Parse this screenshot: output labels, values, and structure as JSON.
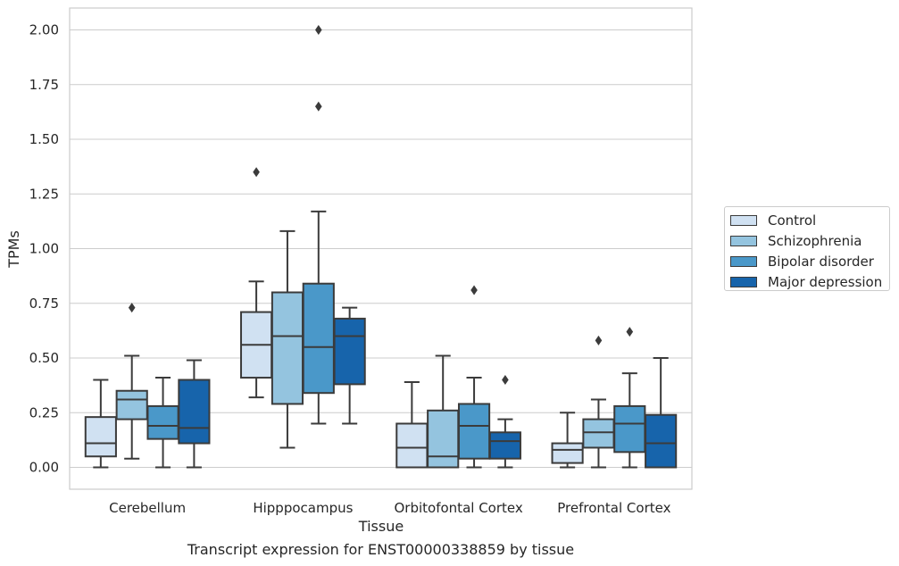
{
  "chart_data": {
    "type": "box",
    "title": "Transcript expression for ENST00000338859 by tissue",
    "xlabel": "Tissue",
    "ylabel": "TPMs",
    "ylim": [
      -0.1,
      2.1
    ],
    "yticks": [
      "0.00",
      "0.25",
      "0.50",
      "0.75",
      "1.00",
      "1.25",
      "1.50",
      "1.75",
      "2.00"
    ],
    "grid": true,
    "legend_position": "right",
    "categories": [
      "Cerebellum",
      "Hipppocampus",
      "Orbitofontal Cortex",
      "Prefrontal Cortex"
    ],
    "series": [
      {
        "name": "Control",
        "color": "#d0e1f2",
        "boxes": [
          {
            "whisker_low": 0.0,
            "q1": 0.05,
            "median": 0.11,
            "q3": 0.23,
            "whisker_high": 0.4,
            "outliers": []
          },
          {
            "whisker_low": 0.32,
            "q1": 0.41,
            "median": 0.56,
            "q3": 0.71,
            "whisker_high": 0.85,
            "outliers": [
              1.35
            ]
          },
          {
            "whisker_low": 0.0,
            "q1": 0.0,
            "median": 0.09,
            "q3": 0.2,
            "whisker_high": 0.39,
            "outliers": []
          },
          {
            "whisker_low": 0.0,
            "q1": 0.02,
            "median": 0.08,
            "q3": 0.11,
            "whisker_high": 0.25,
            "outliers": []
          }
        ]
      },
      {
        "name": "Schizophrenia",
        "color": "#94c4df",
        "boxes": [
          {
            "whisker_low": 0.04,
            "q1": 0.22,
            "median": 0.31,
            "q3": 0.35,
            "whisker_high": 0.51,
            "outliers": [
              0.73
            ]
          },
          {
            "whisker_low": 0.09,
            "q1": 0.29,
            "median": 0.6,
            "q3": 0.8,
            "whisker_high": 1.08,
            "outliers": []
          },
          {
            "whisker_low": 0.0,
            "q1": 0.0,
            "median": 0.05,
            "q3": 0.26,
            "whisker_high": 0.51,
            "outliers": []
          },
          {
            "whisker_low": 0.0,
            "q1": 0.09,
            "median": 0.16,
            "q3": 0.22,
            "whisker_high": 0.31,
            "outliers": [
              0.58
            ]
          }
        ]
      },
      {
        "name": "Bipolar disorder",
        "color": "#4a98c9",
        "boxes": [
          {
            "whisker_low": 0.0,
            "q1": 0.13,
            "median": 0.19,
            "q3": 0.28,
            "whisker_high": 0.41,
            "outliers": []
          },
          {
            "whisker_low": 0.2,
            "q1": 0.34,
            "median": 0.55,
            "q3": 0.84,
            "whisker_high": 1.17,
            "outliers": [
              1.65,
              2.0
            ]
          },
          {
            "whisker_low": 0.0,
            "q1": 0.04,
            "median": 0.19,
            "q3": 0.29,
            "whisker_high": 0.41,
            "outliers": [
              0.81
            ]
          },
          {
            "whisker_low": 0.0,
            "q1": 0.07,
            "median": 0.2,
            "q3": 0.28,
            "whisker_high": 0.43,
            "outliers": [
              0.62
            ]
          }
        ]
      },
      {
        "name": "Major depression",
        "color": "#1764ab",
        "boxes": [
          {
            "whisker_low": 0.0,
            "q1": 0.11,
            "median": 0.18,
            "q3": 0.4,
            "whisker_high": 0.49,
            "outliers": []
          },
          {
            "whisker_low": 0.2,
            "q1": 0.38,
            "median": 0.6,
            "q3": 0.68,
            "whisker_high": 0.73,
            "outliers": []
          },
          {
            "whisker_low": 0.0,
            "q1": 0.04,
            "median": 0.12,
            "q3": 0.16,
            "whisker_high": 0.22,
            "outliers": [
              0.4
            ]
          },
          {
            "whisker_low": 0.0,
            "q1": 0.0,
            "median": 0.11,
            "q3": 0.24,
            "whisker_high": 0.5,
            "outliers": []
          }
        ]
      }
    ]
  }
}
